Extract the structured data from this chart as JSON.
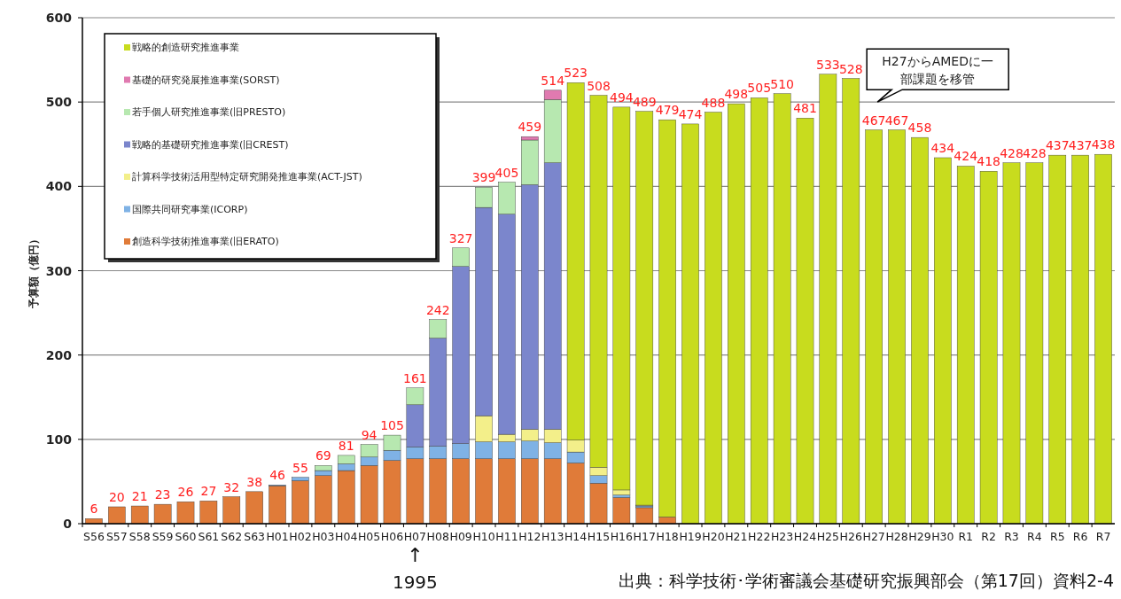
{
  "chart_data": {
    "type": "bar",
    "stacked": true,
    "ylabel": "予算額（億円）",
    "categories": [
      "S56",
      "S57",
      "S58",
      "S59",
      "S60",
      "S61",
      "S62",
      "S63",
      "H01",
      "H02",
      "H03",
      "H04",
      "H05",
      "H06",
      "H07",
      "H08",
      "H09",
      "H10",
      "H11",
      "H12",
      "H13",
      "H14",
      "H15",
      "H16",
      "H17",
      "H18",
      "H19",
      "H20",
      "H21",
      "H22",
      "H23",
      "H24",
      "H25",
      "H26",
      "H27",
      "H28",
      "H29",
      "H30",
      "R1",
      "R2",
      "R3",
      "R4",
      "R5",
      "R6",
      "R7"
    ],
    "series": [
      {
        "name": "創造科学技術推進事業(旧ERATO)",
        "color": "#e07b39",
        "values": [
          6,
          20,
          21,
          23,
          26,
          27,
          32,
          38,
          45,
          51,
          57,
          63,
          69,
          75,
          77,
          77,
          77,
          77,
          77,
          77,
          77,
          72,
          48,
          31,
          19,
          8,
          null,
          null,
          null,
          null,
          null,
          null,
          null,
          null,
          null,
          null,
          null,
          null,
          null,
          null,
          null,
          null,
          null,
          null,
          null
        ]
      },
      {
        "name": "国際共同研究事業(ICORP)",
        "color": "#7fb2e5",
        "values": [
          null,
          null,
          null,
          null,
          null,
          null,
          null,
          null,
          1,
          4,
          6,
          8,
          10,
          12,
          14,
          15,
          18,
          20,
          20,
          21,
          19,
          13,
          9,
          3,
          2,
          null,
          null,
          null,
          null,
          null,
          null,
          null,
          null,
          null,
          null,
          null,
          null,
          null,
          null,
          null,
          null,
          null,
          null,
          null,
          null
        ]
      },
      {
        "name": "計算科学技術活用型特定研究開発推進事業(ACT-JST)",
        "color": "#f3ef8a",
        "values": [
          null,
          null,
          null,
          null,
          null,
          null,
          null,
          null,
          null,
          null,
          null,
          null,
          null,
          null,
          null,
          null,
          null,
          31,
          9,
          14,
          16,
          14,
          10,
          6,
          1,
          null,
          null,
          null,
          null,
          null,
          null,
          null,
          null,
          null,
          null,
          null,
          null,
          null,
          null,
          null,
          null,
          null,
          null,
          null,
          null
        ]
      },
      {
        "name": "戦略的基礎研究推進事業(旧CREST)",
        "color": "#7b86cc",
        "values": [
          null,
          null,
          null,
          null,
          null,
          null,
          null,
          null,
          null,
          null,
          null,
          null,
          null,
          null,
          50,
          128,
          210,
          247,
          261,
          290,
          316,
          null,
          null,
          null,
          null,
          null,
          null,
          null,
          null,
          null,
          null,
          null,
          null,
          null,
          null,
          null,
          null,
          null,
          null,
          null,
          null,
          null,
          null,
          null,
          null
        ]
      },
      {
        "name": "若手個人研究推進事業(旧PRESTO)",
        "color": "#b7e8b0",
        "values": [
          null,
          null,
          null,
          null,
          null,
          null,
          null,
          null,
          null,
          null,
          6,
          10,
          15,
          18,
          20,
          22,
          22,
          24,
          38,
          53,
          75,
          null,
          null,
          null,
          null,
          null,
          null,
          null,
          null,
          null,
          null,
          null,
          null,
          null,
          null,
          null,
          null,
          null,
          null,
          null,
          null,
          null,
          null,
          null,
          null
        ]
      },
      {
        "name": "基礎的研究発展推進事業(SORST)",
        "color": "#e07ab0",
        "values": [
          null,
          null,
          null,
          null,
          null,
          null,
          null,
          null,
          null,
          null,
          null,
          null,
          null,
          null,
          null,
          null,
          null,
          null,
          null,
          4,
          11,
          null,
          null,
          null,
          null,
          null,
          null,
          null,
          null,
          null,
          null,
          null,
          null,
          null,
          null,
          null,
          null,
          null,
          null,
          null,
          null,
          null,
          null,
          null,
          null
        ]
      },
      {
        "name": "戦略的創造研究推進事業",
        "color": "#c8dc1e",
        "values": [
          null,
          null,
          null,
          null,
          null,
          null,
          null,
          null,
          null,
          null,
          null,
          null,
          null,
          null,
          null,
          null,
          null,
          null,
          null,
          null,
          null,
          424,
          441,
          454,
          467,
          471,
          474,
          488,
          498,
          505,
          510,
          481,
          533,
          528,
          467,
          467,
          458,
          434,
          424,
          418,
          428,
          428,
          437,
          437,
          438
        ]
      }
    ],
    "totals": [
      "6",
      "20",
      "21",
      "23",
      "26",
      "27",
      "32",
      "38",
      "46",
      "55",
      "69",
      "81",
      "94",
      "105",
      "161",
      "242",
      "327",
      "399",
      "405",
      "459",
      "514",
      "523",
      "508",
      "494",
      "489",
      "479",
      "474",
      "488",
      "498",
      "505",
      "510",
      "481",
      "533",
      "528",
      "467",
      "467",
      "458",
      "434",
      "424",
      "418",
      "428",
      "428",
      "437",
      "437",
      "438"
    ],
    "ylim": [
      0,
      600
    ],
    "yticks": [
      0,
      100,
      200,
      300,
      400,
      500,
      600
    ],
    "grid": "y",
    "legend": "top left",
    "annotations": [
      "H27からAMEDに一部課題を移管",
      "↑",
      "1995",
      "出典：科学技術･学術審議会基礎研究振興部会（第17回）資料2-4"
    ]
  }
}
